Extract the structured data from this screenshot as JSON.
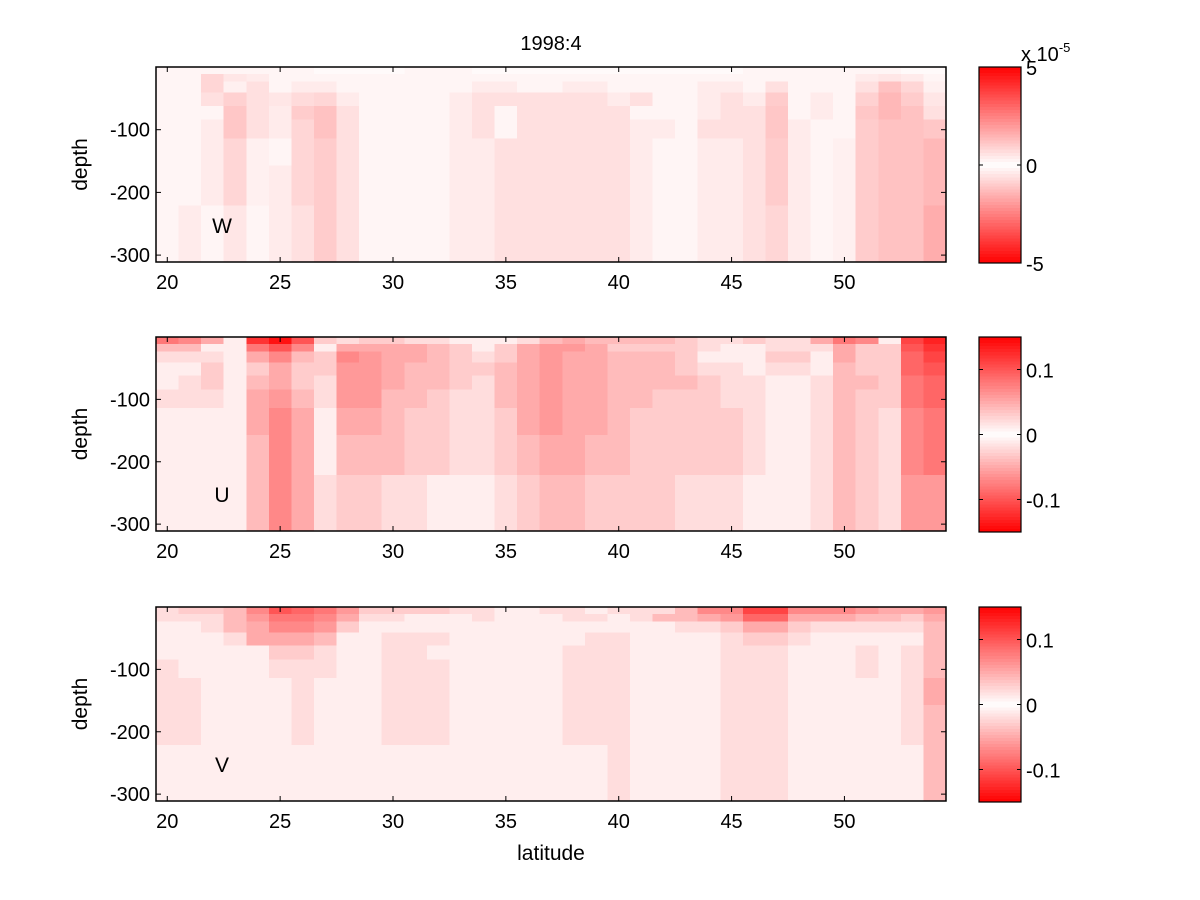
{
  "chart_data": [
    {
      "type": "heatmap",
      "panel_label": "W",
      "title": "1998:4",
      "xlabel": "",
      "ylabel": "depth",
      "x": [
        20,
        21,
        22,
        23,
        24,
        25,
        26,
        27,
        28,
        29,
        30,
        31,
        32,
        33,
        34,
        35,
        36,
        37,
        38,
        39,
        40,
        41,
        42,
        43,
        44,
        45,
        46,
        47,
        48,
        49,
        50,
        51,
        52,
        53,
        54
      ],
      "xlim": [
        19.5,
        54.5
      ],
      "x_ticks": [
        20,
        25,
        30,
        35,
        40,
        45,
        50
      ],
      "depth_edges": [
        0,
        -11,
        -23,
        -41,
        -62,
        -84,
        -114,
        -157,
        -221,
        -311
      ],
      "ylim": [
        -311,
        0
      ],
      "y_ticks": [
        -100,
        -200,
        -300
      ],
      "colorbar": {
        "min": -5,
        "max": 5,
        "ticks": [
          5,
          0,
          -5
        ],
        "multiplier_label": "x 10",
        "multiplier_exponent": "-5"
      },
      "colormap": {
        "negative": "#0000ff",
        "zero": "#ffffff",
        "positive": "#ff0000"
      },
      "values": [
        [
          -0.2,
          -0.2,
          -0.2,
          -0.2,
          -0.2,
          -0.2,
          -0.2,
          0.1,
          0.1,
          0.1,
          0.1,
          -0.2,
          -0.2,
          -0.2,
          0.1,
          0.1,
          0.1,
          0.1,
          0.1,
          0.1,
          0.1,
          0.1,
          0.1,
          0.1,
          0.1,
          0.1,
          -0.2,
          -0.2,
          -0.2,
          -0.2,
          -0.2,
          -0.2,
          -0.2,
          0.1,
          0.1
        ],
        [
          0.2,
          0.2,
          0.8,
          -0.5,
          0.4,
          -0.2,
          -0.2,
          -0.2,
          -0.2,
          0.2,
          -0.2,
          -0.2,
          -0.2,
          -0.2,
          -0.2,
          -0.2,
          -0.2,
          -0.2,
          -0.2,
          -0.2,
          -0.2,
          -0.2,
          0.2,
          0.2,
          -0.2,
          -0.2,
          0.2,
          0.2,
          0.2,
          -0.2,
          -0.2,
          0.4,
          0.5,
          0.4,
          0.2
        ],
        [
          0.2,
          0.2,
          0.8,
          -0.3,
          0.6,
          -0.2,
          -0.4,
          -0.4,
          -0.2,
          0.2,
          -0.2,
          -0.2,
          -0.2,
          -0.2,
          -0.4,
          -0.4,
          -0.2,
          -0.2,
          -0.4,
          -0.4,
          -0.2,
          -0.2,
          0.2,
          0.2,
          -0.4,
          -0.4,
          0.2,
          0.6,
          0.2,
          -0.2,
          -0.2,
          0.6,
          1.2,
          0.8,
          0.3
        ],
        [
          0.2,
          0.2,
          0.6,
          0.9,
          0.6,
          -0.5,
          -0.7,
          -0.8,
          -0.4,
          0.2,
          -0.2,
          -0.2,
          -0.2,
          -0.4,
          -0.6,
          -0.6,
          -0.6,
          -0.6,
          -0.6,
          -0.6,
          -0.4,
          -0.6,
          0.2,
          0.2,
          -0.4,
          -0.6,
          0.4,
          1.0,
          0.2,
          -0.4,
          -0.2,
          0.9,
          1.4,
          1.0,
          0.5
        ],
        [
          0.2,
          0.2,
          0.2,
          1.1,
          0.6,
          -0.4,
          -1.0,
          -1.2,
          -0.6,
          0.2,
          0.2,
          -0.2,
          -0.2,
          -0.4,
          -0.6,
          -0.2,
          -0.6,
          -0.6,
          -0.6,
          -0.6,
          -0.6,
          -0.2,
          0.2,
          0.2,
          -0.4,
          -0.6,
          0.6,
          1.1,
          0.2,
          -0.4,
          0.2,
          1.1,
          1.4,
          1.2,
          0.6
        ],
        [
          0.2,
          0.2,
          -0.4,
          1.1,
          0.6,
          -0.4,
          -0.8,
          -1.2,
          -0.6,
          0.2,
          -0.2,
          -0.2,
          -0.2,
          -0.4,
          -0.6,
          -0.2,
          -0.6,
          -0.6,
          -0.6,
          -0.6,
          -0.6,
          -0.4,
          0.4,
          -0.2,
          -0.6,
          -0.6,
          0.6,
          1.1,
          0.4,
          -0.2,
          0.2,
          1.0,
          1.2,
          1.2,
          1.1
        ],
        [
          0.2,
          0.2,
          -0.4,
          0.8,
          0.3,
          -0.2,
          -0.8,
          -1.0,
          -0.6,
          -0.2,
          -0.2,
          -0.2,
          -0.2,
          -0.4,
          -0.4,
          -0.6,
          -0.6,
          -0.6,
          -0.6,
          -0.6,
          -0.6,
          -0.4,
          0.2,
          -0.2,
          -0.4,
          -0.4,
          0.6,
          1.0,
          0.4,
          -0.2,
          0.3,
          1.0,
          1.2,
          1.2,
          1.4
        ],
        [
          0.2,
          0.2,
          -0.4,
          0.8,
          0.3,
          -0.4,
          -0.8,
          -1.0,
          -0.6,
          -0.2,
          -0.2,
          -0.2,
          -0.2,
          -0.4,
          -0.4,
          -0.6,
          -0.6,
          -0.6,
          -0.6,
          -0.6,
          -0.6,
          -0.4,
          0.2,
          -0.2,
          -0.4,
          -0.4,
          0.6,
          1.0,
          0.4,
          -0.2,
          0.3,
          1.0,
          1.2,
          1.2,
          1.4
        ],
        [
          0.2,
          0.4,
          -0.2,
          0.5,
          0.2,
          -0.4,
          -0.6,
          -1.0,
          -0.6,
          -0.2,
          -0.2,
          -0.2,
          -0.2,
          -0.4,
          -0.4,
          -0.6,
          -0.6,
          -0.6,
          -0.6,
          -0.6,
          -0.6,
          -0.4,
          0.2,
          -0.2,
          -0.4,
          -0.4,
          0.6,
          0.8,
          0.4,
          -0.2,
          0.3,
          1.0,
          1.2,
          1.2,
          1.6
        ]
      ]
    },
    {
      "type": "heatmap",
      "panel_label": "U",
      "title": "",
      "xlabel": "",
      "ylabel": "depth",
      "x": [
        20,
        21,
        22,
        23,
        24,
        25,
        26,
        27,
        28,
        29,
        30,
        31,
        32,
        33,
        34,
        35,
        36,
        37,
        38,
        39,
        40,
        41,
        42,
        43,
        44,
        45,
        46,
        47,
        48,
        49,
        50,
        51,
        52,
        53,
        54
      ],
      "xlim": [
        19.5,
        54.5
      ],
      "x_ticks": [
        20,
        25,
        30,
        35,
        40,
        45,
        50
      ],
      "depth_edges": [
        0,
        -11,
        -23,
        -41,
        -62,
        -84,
        -114,
        -157,
        -221,
        -311
      ],
      "ylim": [
        -311,
        0
      ],
      "y_ticks": [
        -100,
        -200,
        -300
      ],
      "colorbar": {
        "min": -0.15,
        "max": 0.15,
        "ticks": [
          0.1,
          0,
          -0.1
        ]
      },
      "colormap": {
        "negative": "#0000ff",
        "zero": "#ffffff",
        "positive": "#ff0000"
      },
      "values": [
        [
          -0.08,
          -0.07,
          -0.05,
          0.01,
          -0.12,
          -0.14,
          -0.1,
          -0.03,
          0.02,
          0.03,
          0.03,
          0.02,
          0.02,
          0.01,
          -0.01,
          -0.01,
          0.02,
          0.04,
          0.05,
          0.04,
          0.04,
          0.04,
          0.04,
          0.03,
          0.02,
          0.02,
          0.03,
          0.02,
          0.02,
          0.05,
          0.08,
          0.07,
          -0.01,
          -0.11,
          -0.13
        ],
        [
          -0.04,
          -0.04,
          -0.01,
          0.01,
          -0.08,
          -0.1,
          -0.07,
          0.01,
          0.05,
          0.05,
          0.05,
          0.05,
          0.04,
          0.03,
          0.01,
          0.03,
          0.05,
          0.06,
          0.06,
          0.05,
          0.03,
          0.03,
          0.03,
          0.03,
          0.02,
          0.01,
          0.01,
          -0.02,
          -0.02,
          0.02,
          0.05,
          0.03,
          -0.03,
          -0.1,
          -0.12
        ],
        [
          -0.02,
          -0.02,
          0.02,
          0.01,
          -0.05,
          -0.07,
          -0.04,
          0.03,
          0.07,
          0.06,
          0.05,
          0.05,
          0.04,
          0.03,
          0.02,
          0.03,
          0.05,
          0.06,
          0.05,
          0.05,
          0.04,
          0.04,
          0.04,
          0.03,
          0.01,
          0.01,
          -0.01,
          -0.03,
          -0.03,
          0.01,
          0.05,
          0.03,
          -0.03,
          -0.09,
          -0.11
        ],
        [
          -0.01,
          0.01,
          0.03,
          0.01,
          -0.03,
          -0.05,
          -0.03,
          0.03,
          0.06,
          0.06,
          0.05,
          0.04,
          0.04,
          0.03,
          0.03,
          0.04,
          0.05,
          0.06,
          0.05,
          0.05,
          0.04,
          0.04,
          0.04,
          0.03,
          0.02,
          0.02,
          0.01,
          -0.02,
          -0.02,
          0.01,
          0.04,
          0.03,
          -0.03,
          -0.09,
          -0.1
        ],
        [
          0.01,
          0.02,
          0.03,
          0.01,
          -0.04,
          -0.05,
          -0.03,
          0.02,
          0.06,
          0.06,
          0.05,
          0.04,
          0.04,
          0.03,
          0.02,
          0.04,
          0.05,
          0.06,
          0.05,
          0.05,
          0.04,
          0.04,
          0.04,
          0.04,
          0.03,
          0.02,
          0.02,
          0.01,
          -0.01,
          0.02,
          0.04,
          0.04,
          -0.03,
          -0.08,
          -0.09
        ],
        [
          0.02,
          0.02,
          0.02,
          0.01,
          -0.05,
          -0.06,
          -0.04,
          0.02,
          0.06,
          0.06,
          0.04,
          0.04,
          0.03,
          0.02,
          0.02,
          0.04,
          0.05,
          0.06,
          0.05,
          0.05,
          0.04,
          0.04,
          0.03,
          0.03,
          0.03,
          0.02,
          0.02,
          0.01,
          -0.01,
          0.02,
          0.04,
          0.03,
          -0.03,
          -0.08,
          -0.09
        ],
        [
          0.01,
          0.01,
          0.01,
          0.01,
          -0.05,
          -0.07,
          -0.05,
          0.01,
          0.05,
          0.05,
          0.04,
          0.03,
          0.03,
          0.02,
          0.02,
          0.03,
          0.05,
          0.06,
          0.05,
          0.05,
          0.04,
          0.03,
          0.03,
          0.03,
          0.03,
          0.03,
          0.02,
          0.01,
          -0.01,
          0.02,
          0.04,
          0.03,
          -0.02,
          -0.07,
          -0.08
        ],
        [
          0.01,
          0.01,
          0.01,
          0.01,
          -0.04,
          -0.07,
          -0.05,
          -0.01,
          0.04,
          0.04,
          0.04,
          0.03,
          0.03,
          0.02,
          0.02,
          0.03,
          0.04,
          0.05,
          0.05,
          0.04,
          0.04,
          0.03,
          0.03,
          0.03,
          0.03,
          0.03,
          0.02,
          0.01,
          -0.01,
          0.02,
          0.04,
          0.03,
          -0.02,
          -0.07,
          -0.08
        ],
        [
          -0.01,
          0.01,
          -0.01,
          0.01,
          -0.04,
          -0.07,
          -0.05,
          -0.02,
          0.03,
          0.03,
          0.02,
          0.02,
          0.01,
          0.01,
          0.01,
          0.02,
          0.03,
          0.04,
          0.04,
          0.03,
          0.03,
          0.03,
          0.03,
          0.02,
          0.02,
          0.02,
          0.01,
          0.01,
          0.01,
          0.02,
          0.04,
          0.03,
          -0.02,
          -0.06,
          -0.06
        ]
      ]
    },
    {
      "type": "heatmap",
      "panel_label": "V",
      "title": "",
      "xlabel": "latitude",
      "ylabel": "depth",
      "x": [
        20,
        21,
        22,
        23,
        24,
        25,
        26,
        27,
        28,
        29,
        30,
        31,
        32,
        33,
        34,
        35,
        36,
        37,
        38,
        39,
        40,
        41,
        42,
        43,
        44,
        45,
        46,
        47,
        48,
        49,
        50,
        51,
        52,
        53,
        54
      ],
      "xlim": [
        19.5,
        54.5
      ],
      "x_ticks": [
        20,
        25,
        30,
        35,
        40,
        45,
        50
      ],
      "depth_edges": [
        0,
        -11,
        -23,
        -41,
        -62,
        -84,
        -114,
        -157,
        -221,
        -311
      ],
      "ylim": [
        -311,
        0
      ],
      "y_ticks": [
        -100,
        -200,
        -300
      ],
      "colorbar": {
        "min": -0.15,
        "max": 0.15,
        "ticks": [
          0.1,
          0,
          -0.1
        ]
      },
      "colormap": {
        "negative": "#0000ff",
        "zero": "#ffffff",
        "positive": "#ff0000"
      },
      "values": [
        [
          0.02,
          0.03,
          0.03,
          0.04,
          0.07,
          0.1,
          0.09,
          0.08,
          0.06,
          0.03,
          0.03,
          0.03,
          0.03,
          0.02,
          0.02,
          0.01,
          -0.01,
          -0.02,
          -0.02,
          -0.01,
          -0.02,
          -0.02,
          -0.02,
          -0.04,
          -0.07,
          -0.07,
          -0.11,
          -0.11,
          -0.07,
          -0.07,
          -0.07,
          -0.06,
          -0.05,
          -0.05,
          -0.06
        ],
        [
          0.02,
          0.02,
          0.02,
          0.04,
          0.06,
          0.08,
          0.08,
          0.07,
          0.05,
          0.02,
          0.02,
          0.01,
          0.01,
          0.01,
          0.02,
          0.01,
          0.01,
          -0.01,
          -0.02,
          -0.02,
          -0.01,
          -0.02,
          -0.04,
          -0.04,
          -0.05,
          -0.06,
          -0.09,
          -0.09,
          -0.05,
          -0.05,
          -0.05,
          -0.04,
          -0.04,
          -0.03,
          -0.05
        ],
        [
          0.01,
          0.01,
          0.02,
          0.04,
          0.05,
          0.07,
          0.07,
          0.06,
          0.03,
          0.01,
          -0.01,
          -0.01,
          -0.01,
          -0.01,
          0.01,
          0.01,
          0.01,
          0.01,
          -0.01,
          -0.01,
          0.01,
          0.01,
          -0.01,
          -0.02,
          -0.02,
          -0.03,
          -0.05,
          -0.05,
          -0.03,
          -0.02,
          -0.02,
          -0.02,
          -0.02,
          -0.02,
          -0.04
        ],
        [
          -0.01,
          0.01,
          0.01,
          0.02,
          0.05,
          0.05,
          0.05,
          0.04,
          0.01,
          -0.01,
          -0.02,
          -0.02,
          -0.02,
          -0.01,
          -0.01,
          -0.01,
          0.01,
          0.01,
          0.01,
          0.02,
          0.02,
          0.01,
          -0.01,
          -0.01,
          -0.01,
          -0.02,
          -0.03,
          -0.03,
          -0.02,
          -0.01,
          -0.01,
          -0.01,
          0.01,
          -0.01,
          -0.04
        ],
        [
          -0.01,
          -0.01,
          -0.01,
          0.01,
          0.01,
          0.03,
          0.03,
          0.02,
          0.01,
          -0.01,
          -0.02,
          -0.02,
          -0.01,
          -0.01,
          -0.01,
          -0.01,
          0.01,
          0.01,
          0.02,
          0.02,
          0.02,
          0.01,
          -0.01,
          -0.01,
          -0.01,
          -0.02,
          -0.02,
          -0.02,
          -0.01,
          0.01,
          0.01,
          0.02,
          0.01,
          -0.02,
          -0.04
        ],
        [
          -0.02,
          -0.01,
          -0.01,
          0.01,
          0.01,
          0.02,
          0.02,
          0.02,
          0.01,
          -0.01,
          -0.02,
          -0.02,
          -0.02,
          -0.01,
          -0.01,
          0.01,
          0.01,
          0.01,
          0.02,
          0.02,
          0.02,
          0.01,
          -0.01,
          -0.01,
          -0.01,
          -0.02,
          -0.02,
          -0.02,
          -0.01,
          -0.01,
          0.01,
          0.02,
          0.01,
          -0.02,
          -0.04
        ],
        [
          -0.02,
          -0.02,
          -0.01,
          -0.01,
          0.01,
          0.01,
          0.02,
          0.01,
          0.01,
          -0.01,
          -0.02,
          -0.02,
          -0.02,
          -0.01,
          -0.01,
          0.01,
          0.01,
          0.01,
          0.02,
          0.02,
          0.02,
          0.01,
          -0.01,
          -0.01,
          -0.01,
          -0.02,
          -0.02,
          -0.02,
          -0.01,
          -0.01,
          0.01,
          0.01,
          0.01,
          -0.02,
          -0.05
        ],
        [
          -0.02,
          -0.02,
          -0.01,
          -0.01,
          0.01,
          0.01,
          0.02,
          0.01,
          0.01,
          -0.01,
          -0.02,
          -0.02,
          -0.02,
          -0.01,
          -0.01,
          -0.01,
          0.01,
          0.01,
          0.02,
          0.02,
          0.02,
          0.01,
          -0.01,
          -0.01,
          -0.01,
          -0.02,
          -0.02,
          -0.02,
          -0.01,
          -0.01,
          0.01,
          0.01,
          0.01,
          -0.02,
          -0.04
        ],
        [
          -0.01,
          -0.01,
          -0.01,
          -0.01,
          0.01,
          0.01,
          0.01,
          0.01,
          0.01,
          -0.01,
          -0.01,
          -0.01,
          -0.01,
          -0.01,
          -0.01,
          0.01,
          0.01,
          0.01,
          0.01,
          0.01,
          0.02,
          0.01,
          -0.01,
          -0.01,
          -0.01,
          -0.02,
          -0.02,
          -0.02,
          -0.01,
          0.01,
          0.01,
          0.01,
          0.01,
          -0.01,
          -0.04
        ]
      ]
    }
  ],
  "figure_title": "1998:4",
  "x_axis_label": "latitude",
  "y_axis_label": "depth",
  "panel_labels": [
    "W",
    "U",
    "V"
  ]
}
